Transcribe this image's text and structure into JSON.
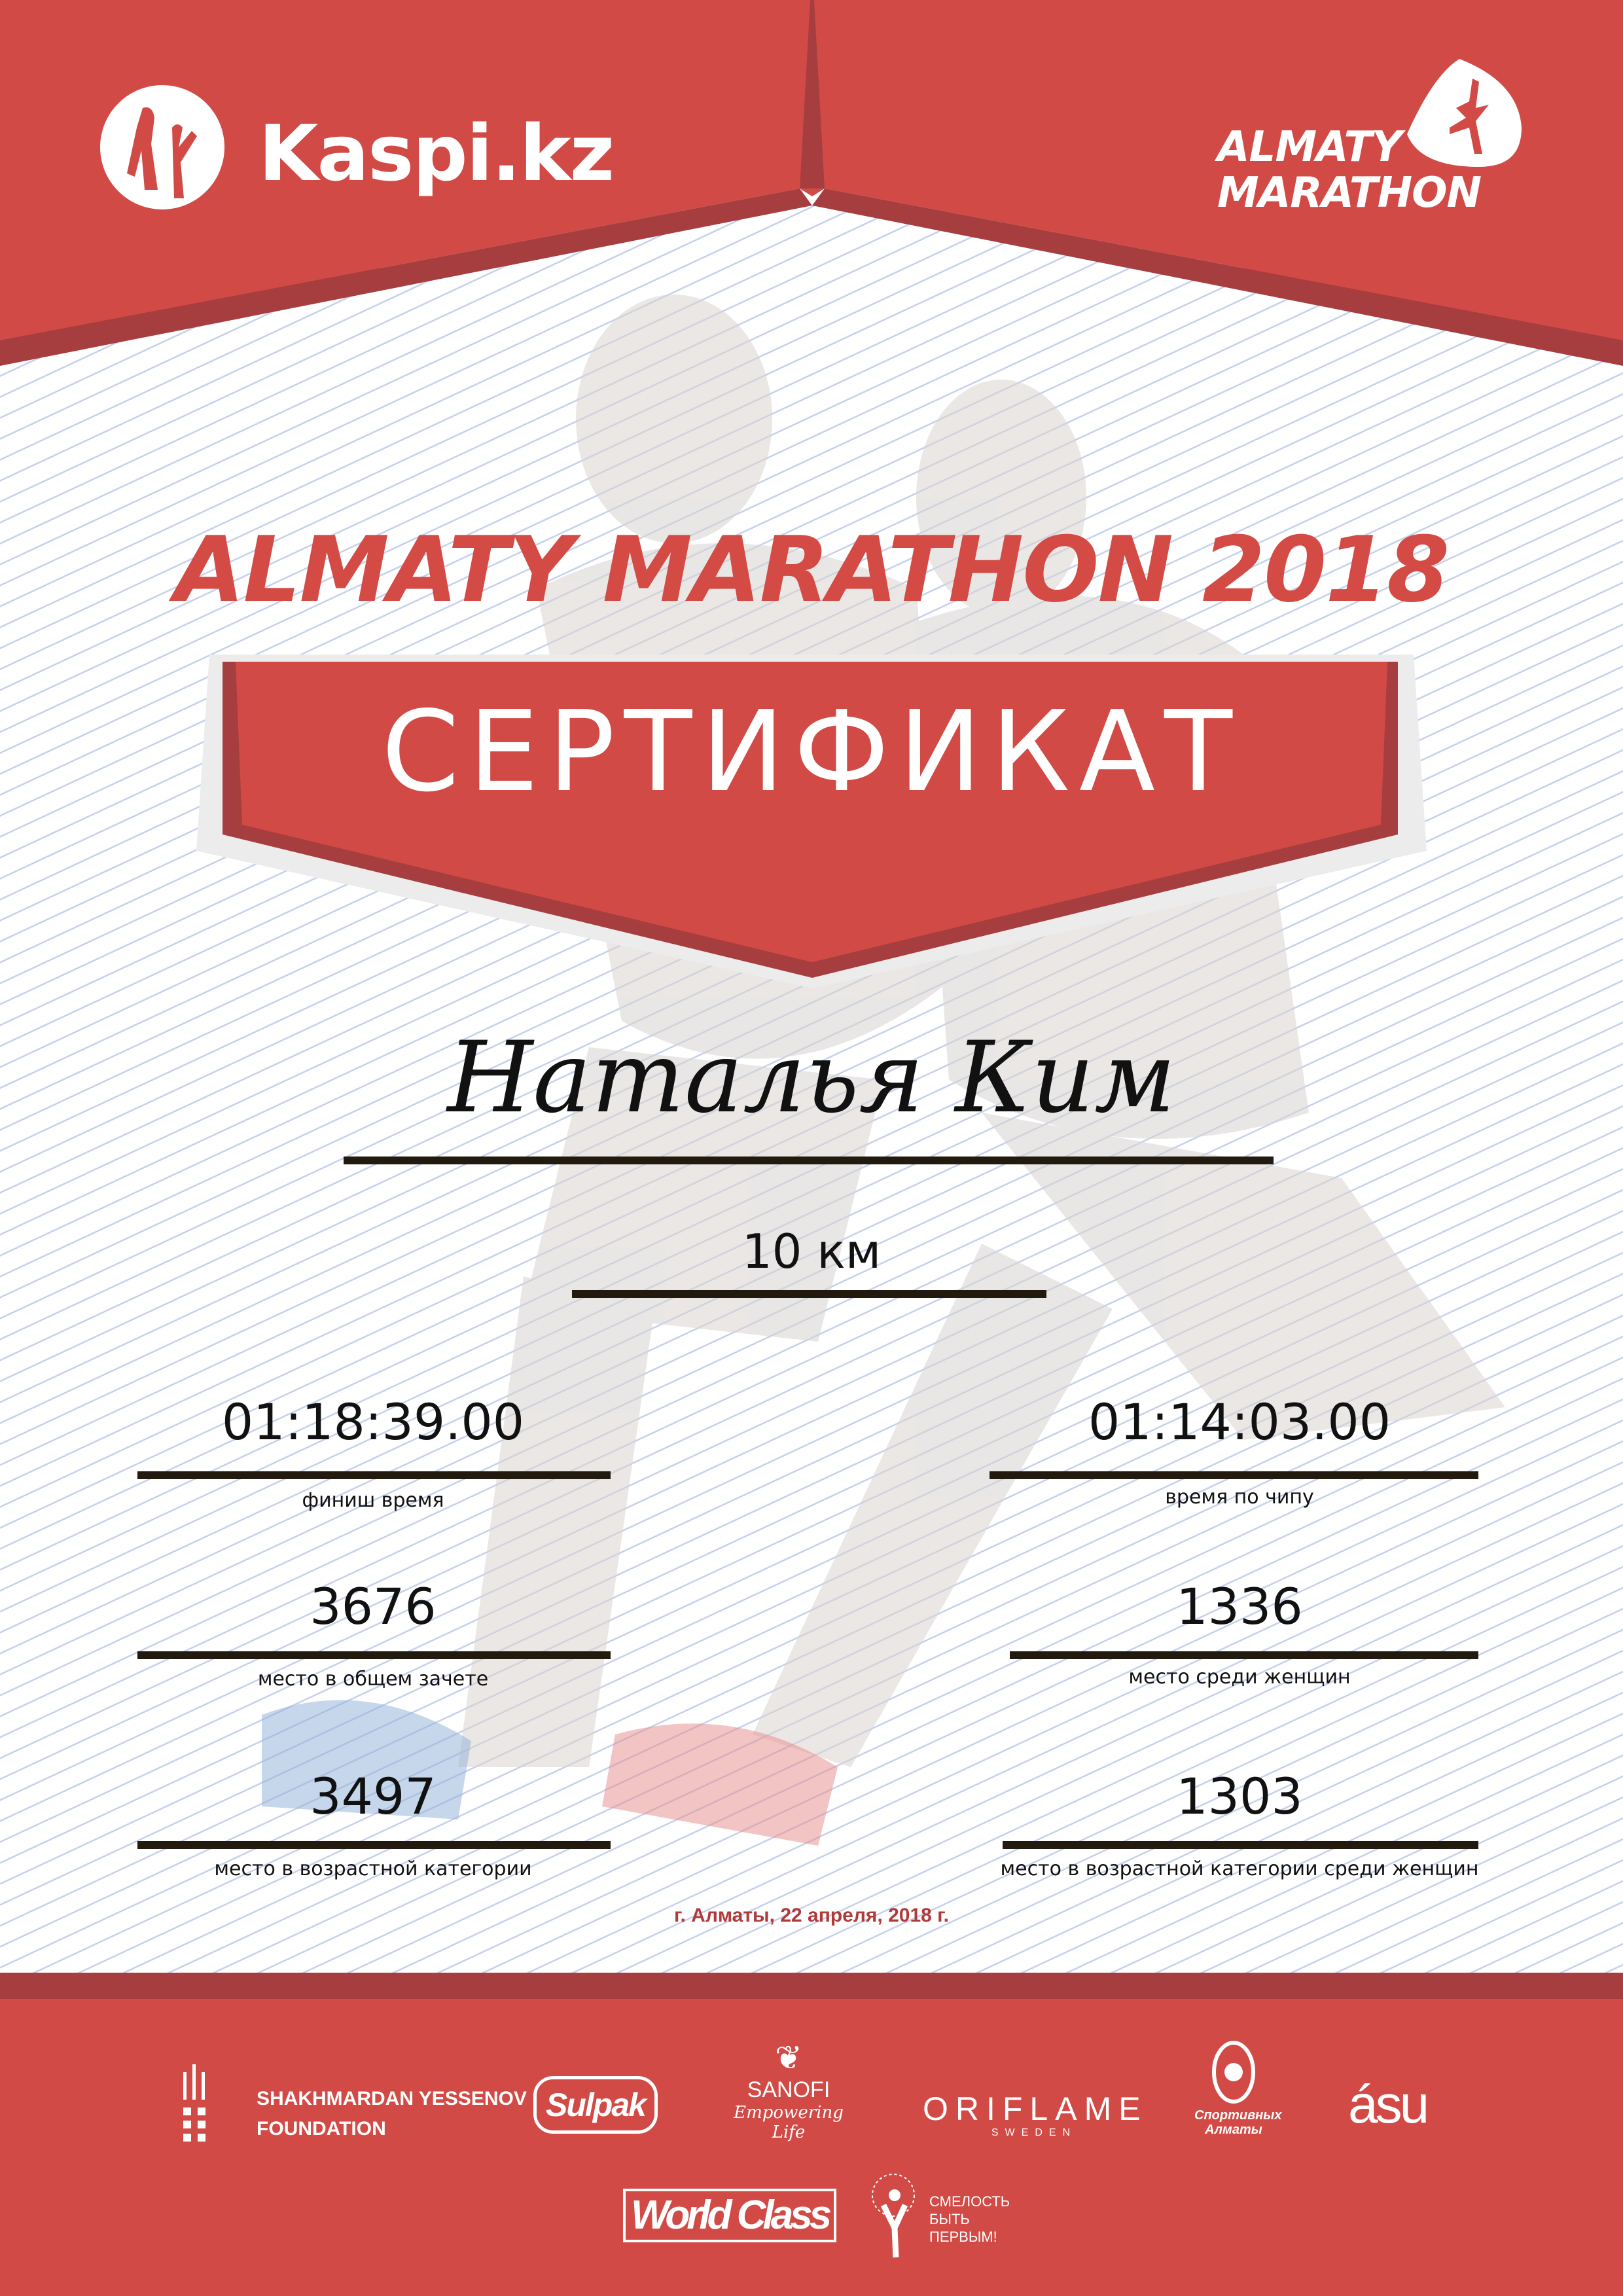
{
  "header": {
    "sponsor_logo": "Kaspi.kz",
    "event_logo_line1": "ALMATY",
    "event_logo_line2": "MARATHON"
  },
  "title": "ALMATY MARATHON 2018",
  "certificate_label": "СЕРТИФИКАТ",
  "participant": {
    "name": "Наталья Ким",
    "distance": "10 км"
  },
  "results": {
    "finish_time": {
      "value": "01:18:39.00",
      "label": "финиш время"
    },
    "chip_time": {
      "value": "01:14:03.00",
      "label": "время по чипу"
    },
    "overall_place": {
      "value": "3676",
      "label": "место в общем зачете"
    },
    "women_place": {
      "value": "1336",
      "label": "место среди женщин"
    },
    "age_place": {
      "value": "3497",
      "label": "место в возрастной категории"
    },
    "age_women_place": {
      "value": "1303",
      "label": "место в возрастной категории среди женщин"
    }
  },
  "date_line": "г. Алматы, 22 апреля, 2018 г.",
  "sponsors": {
    "yessenov_line1": "SHAKHMARDAN YESSENOV",
    "yessenov_line2": "FOUNDATION",
    "sulpak": "Sulpak",
    "sanofi": "SANOFI",
    "sanofi_tagline": "Empowering Life",
    "oriflame": "ORIFLAME",
    "oriflame_sub": "SWEDEN",
    "sport_almaty": "Спортивных Алматы",
    "asu": "ásu",
    "worldclass": "World Class",
    "fund_line1": "СМЕЛОСТЬ",
    "fund_line2": "БЫТЬ",
    "fund_line3": "ПЕРВЫМ!"
  },
  "colors": {
    "brand_red": "#d24a45",
    "dark_red": "#a63e3f",
    "text": "#111111",
    "rule": "#22190f"
  }
}
